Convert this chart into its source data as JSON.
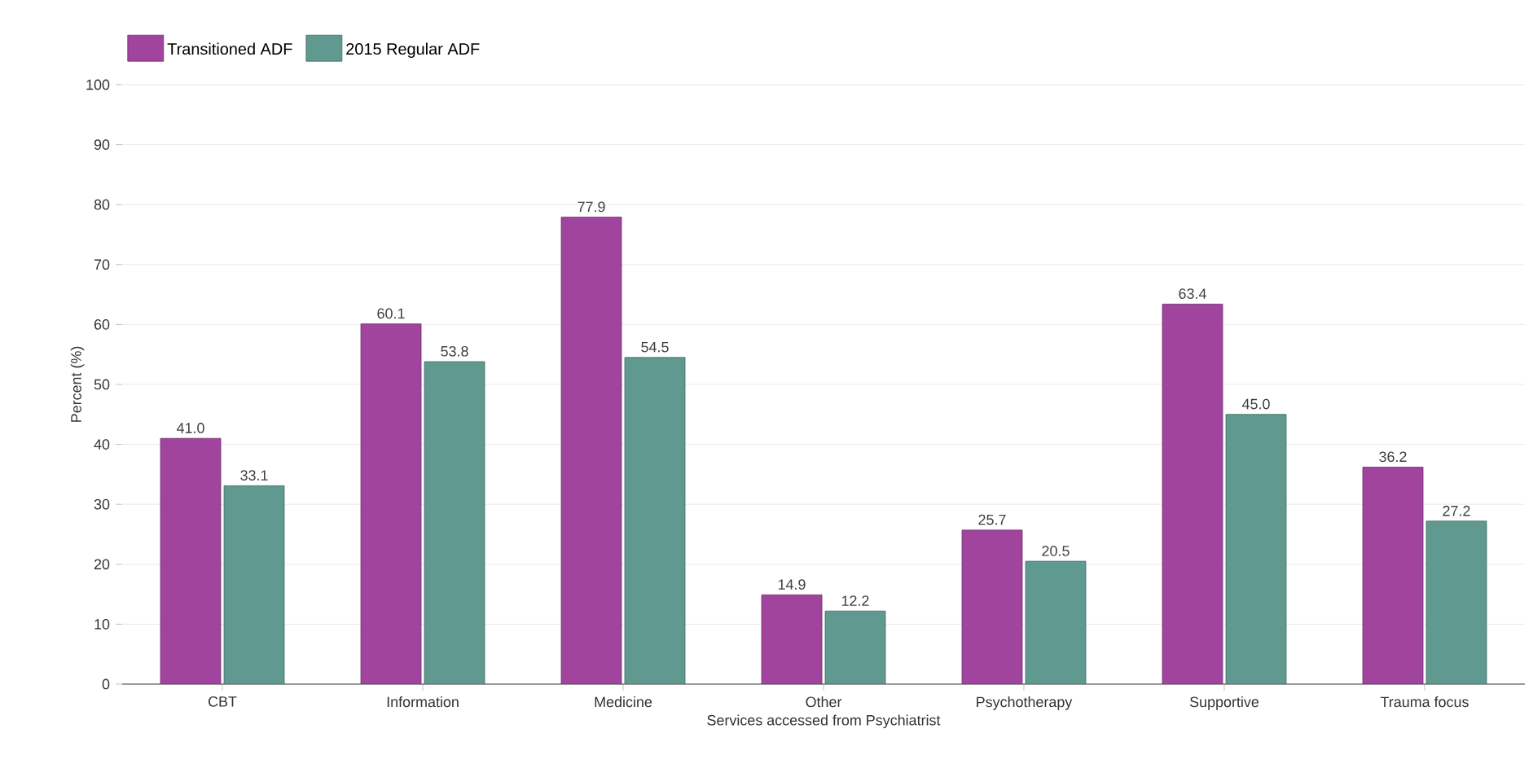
{
  "chart_data": {
    "type": "bar",
    "xlabel": "Services accessed from Psychiatrist",
    "ylabel": "Percent (%)",
    "categories": [
      "CBT",
      "Information",
      "Medicine",
      "Other",
      "Psychotherapy",
      "Supportive",
      "Trauma focus"
    ],
    "series": [
      {
        "name": "Transitioned ADF",
        "color": "#a0449e",
        "values": [
          41.0,
          60.1,
          77.9,
          14.9,
          25.7,
          63.4,
          36.2
        ],
        "value_labels": [
          "41.0",
          "60.1",
          "77.9",
          "14.9",
          "25.7",
          "63.4",
          "36.2"
        ]
      },
      {
        "name": "2015 Regular ADF",
        "color": "#5f9990",
        "values": [
          33.1,
          53.8,
          54.5,
          12.2,
          20.5,
          45.0,
          27.2
        ],
        "value_labels": [
          "33.1",
          "53.8",
          "54.5",
          "12.2",
          "20.5",
          "45.0",
          "27.2"
        ]
      }
    ],
    "ylim": [
      0,
      100
    ],
    "yticks": [
      0,
      10,
      20,
      30,
      40,
      50,
      60,
      70,
      80,
      90,
      100
    ],
    "grid": "y",
    "legend": "top left"
  }
}
